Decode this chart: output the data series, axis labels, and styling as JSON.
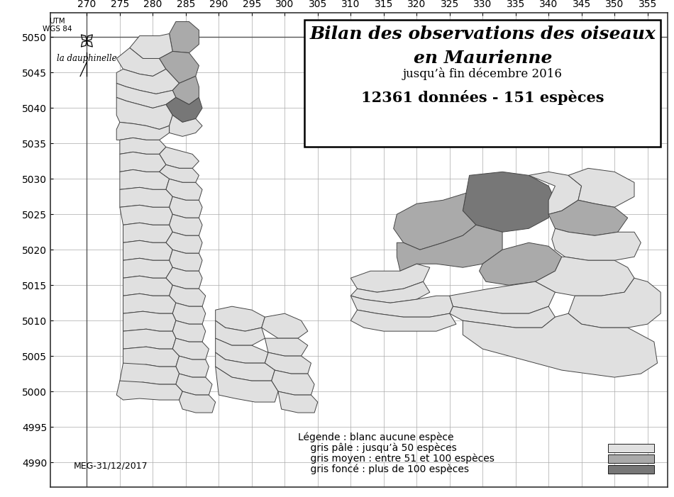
{
  "title_line1": "Bilan des observations des oiseaux",
  "title_line2": "en Maurienne",
  "subtitle": "jusqu’à fin décembre 2016",
  "data_line": "12361 données - 151 espèces",
  "date_label": "MEG-31/12/2017",
  "utm_label": "UTM\nWGS 84",
  "legend_title": "Légende : blanc aucune espèce",
  "legend_pale": "    gris pâle : jusqu’à 50 espèces",
  "legend_moyen": "    gris moyen : entre 51 et 100 espèces",
  "legend_fonce": "    gris foncé : plus de 100 espèces",
  "color_pale": "#e0e0e0",
  "color_moyen": "#aaaaaa",
  "color_fonce": "#777777",
  "color_border": "#444444",
  "color_bg": "#ffffff",
  "x_ticks": [
    270,
    275,
    280,
    285,
    290,
    295,
    300,
    305,
    310,
    315,
    320,
    325,
    330,
    335,
    340,
    345,
    350,
    355
  ],
  "y_ticks": [
    5050,
    5045,
    5040,
    5035,
    5030,
    5025,
    5020,
    5015,
    5010,
    5005,
    5000,
    4995,
    4990
  ],
  "xlim": [
    264.5,
    358
  ],
  "ylim_bottom": 4986.5,
  "ylim_top": 5053.5,
  "title_fontsize": 18,
  "subtitle_fontsize": 12,
  "data_fontsize": 15,
  "tick_fontsize": 10,
  "legend_fontsize": 10
}
